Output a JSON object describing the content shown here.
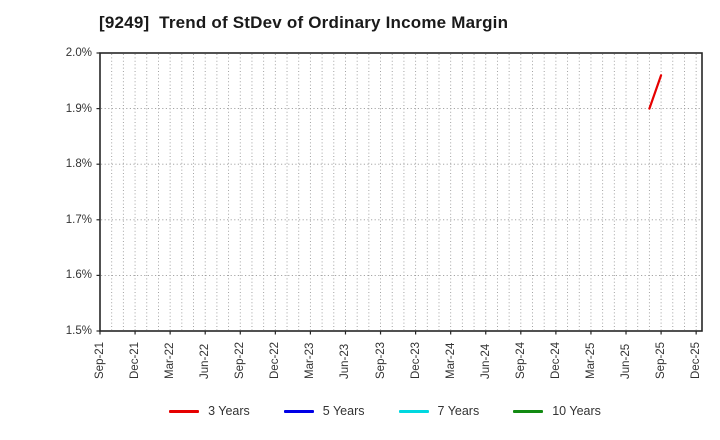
{
  "page": {
    "background": "#ffffff"
  },
  "chart_data": {
    "type": "line",
    "title": "[9249]  Trend of StDev of Ordinary Income Margin",
    "title_color": "#1a1a1a",
    "axis_color": "#262626",
    "grid_color": "#999999",
    "tick_label_color": "#333333",
    "ylabel": "",
    "xlabel": "",
    "ylim": [
      1.5,
      2.0
    ],
    "ytick_values": [
      2.0,
      1.9,
      1.8,
      1.7,
      1.6,
      1.5
    ],
    "ytick_labels": [
      "2.0%",
      "1.9%",
      "1.8%",
      "1.7%",
      "1.6%",
      "1.5%"
    ],
    "x_tick_labels": [
      "Sep-21",
      "Dec-21",
      "Mar-22",
      "Jun-22",
      "Sep-22",
      "Dec-22",
      "Mar-23",
      "Jun-23",
      "Sep-23",
      "Dec-23",
      "Mar-24",
      "Jun-24",
      "Sep-24",
      "Dec-24",
      "Mar-25",
      "Jun-25",
      "Sep-25",
      "Dec-25"
    ],
    "months_between_labeled_ticks": 3,
    "total_month_span": 51.5,
    "grid": {
      "vertical": "monthly dotted",
      "horizontal": "every 0.1% dotted"
    },
    "series": [
      {
        "name": "3 Years",
        "color": "#e60000",
        "points": [
          {
            "x_label": "Aug-25",
            "month_index": 47,
            "value": 1.9
          },
          {
            "x_label": "Sep-25",
            "month_index": 48,
            "value": 1.96
          }
        ]
      },
      {
        "name": "5 Years",
        "color": "#0000e6",
        "points": []
      },
      {
        "name": "7 Years",
        "color": "#00d8e0",
        "points": []
      },
      {
        "name": "10 Years",
        "color": "#128a12",
        "points": []
      }
    ],
    "legend": {
      "position": "bottom"
    }
  }
}
